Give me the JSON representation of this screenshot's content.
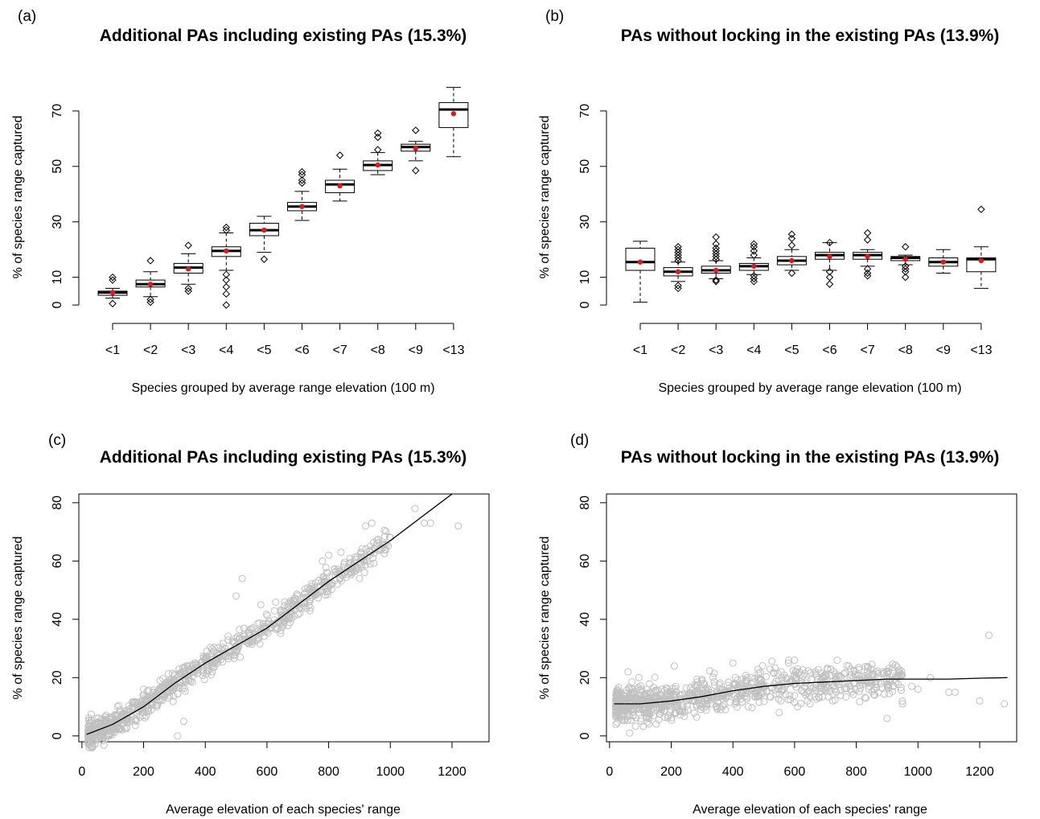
{
  "chart_data": [
    {
      "panel": "(a)",
      "type": "box",
      "title": "Additional PAs including existing PAs (15.3%)",
      "xlabel": "Species grouped by average range elevation (100 m)",
      "ylabel": "% of species range captured",
      "categories": [
        "<1",
        "<2",
        "<3",
        "<4",
        "<5",
        "<6",
        "<7",
        "<8",
        "<9",
        "<13"
      ],
      "yticks": [
        0,
        10,
        30,
        50,
        70
      ],
      "ylim": [
        -2,
        81
      ],
      "mean_color": "#e8161b",
      "boxes": [
        {
          "min": 2.5,
          "q1": 3.5,
          "median": 4.5,
          "q3": 5,
          "max": 6,
          "mean": 4.5,
          "outliers": [
            0.5,
            9,
            10
          ]
        },
        {
          "min": 3,
          "q1": 6.5,
          "median": 7.5,
          "q3": 9,
          "max": 12,
          "mean": 7.5,
          "outliers": [
            1,
            2,
            16
          ]
        },
        {
          "min": 7.5,
          "q1": 11.5,
          "median": 13.5,
          "q3": 15,
          "max": 18.5,
          "mean": 13,
          "outliers": [
            5,
            6,
            21.5
          ]
        },
        {
          "min": 12.5,
          "q1": 17.5,
          "median": 19.5,
          "q3": 21,
          "max": 26,
          "mean": 19.5,
          "outliers": [
            0,
            4,
            6.5,
            9,
            11,
            27,
            28
          ]
        },
        {
          "min": 19,
          "q1": 25,
          "median": 27,
          "q3": 29.5,
          "max": 32,
          "mean": 27,
          "outliers": [
            16.5
          ]
        },
        {
          "min": 30.5,
          "q1": 34,
          "median": 35.5,
          "q3": 37,
          "max": 41,
          "mean": 35.5,
          "outliers": [
            44,
            45,
            47,
            48
          ]
        },
        {
          "min": 37.5,
          "q1": 40.5,
          "median": 43.5,
          "q3": 45,
          "max": 49,
          "mean": 43,
          "outliers": [
            54
          ]
        },
        {
          "min": 47,
          "q1": 48.5,
          "median": 50.5,
          "q3": 52,
          "max": 55,
          "mean": 50.5,
          "outliers": [
            56,
            60.5,
            62
          ]
        },
        {
          "min": 52,
          "q1": 55.5,
          "median": 57,
          "q3": 58,
          "max": 59,
          "mean": 56.5,
          "outliers": [
            48.5,
            63
          ]
        },
        {
          "min": 53.5,
          "q1": 64,
          "median": 70.5,
          "q3": 73,
          "max": 78.5,
          "mean": 69,
          "outliers": []
        }
      ]
    },
    {
      "panel": "(b)",
      "type": "box",
      "title": "PAs without locking in the existing PAs (13.9%)",
      "xlabel": "Species grouped by average range elevation (100 m)",
      "ylabel": "% of species range captured",
      "categories": [
        "<1",
        "<2",
        "<3",
        "<4",
        "<5",
        "<6",
        "<7",
        "<8",
        "<9",
        "<13"
      ],
      "yticks": [
        0,
        10,
        30,
        50,
        70
      ],
      "ylim": [
        -2,
        81
      ],
      "mean_color": "#e8161b",
      "boxes": [
        {
          "min": 1,
          "q1": 12.5,
          "median": 15.5,
          "q3": 20.5,
          "max": 23,
          "mean": 15.5,
          "outliers": []
        },
        {
          "min": 8.5,
          "q1": 10.5,
          "median": 12,
          "q3": 13.5,
          "max": 15.5,
          "mean": 12,
          "outliers": [
            6,
            7,
            16,
            17,
            18,
            19,
            20,
            21
          ]
        },
        {
          "min": 9.5,
          "q1": 11.5,
          "median": 12.5,
          "q3": 14,
          "max": 16,
          "mean": 12.5,
          "outliers": [
            8.5,
            9,
            16.5,
            17.5,
            18.5,
            19.5,
            20.5,
            22,
            24.5
          ]
        },
        {
          "min": 11,
          "q1": 12.5,
          "median": 14,
          "q3": 15,
          "max": 17,
          "mean": 14,
          "outliers": [
            8.5,
            9.5,
            10.5,
            18,
            19.5,
            21,
            22
          ]
        },
        {
          "min": 12.5,
          "q1": 14.5,
          "median": 16,
          "q3": 17.5,
          "max": 20,
          "mean": 16,
          "outliers": [
            11.5,
            21.5,
            24,
            25.5
          ]
        },
        {
          "min": 12.5,
          "q1": 16.5,
          "median": 18,
          "q3": 19,
          "max": 22.5,
          "mean": 17.5,
          "outliers": [
            7.5,
            10,
            12,
            22.5
          ]
        },
        {
          "min": 14,
          "q1": 16.5,
          "median": 18,
          "q3": 19,
          "max": 20,
          "mean": 17.5,
          "outliers": [
            10.5,
            11.5,
            13,
            23.5,
            26
          ]
        },
        {
          "min": 14.5,
          "q1": 16,
          "median": 17,
          "q3": 17.5,
          "max": 18,
          "mean": 16.5,
          "outliers": [
            10,
            12,
            13,
            14,
            21
          ]
        },
        {
          "min": 11.5,
          "q1": 14,
          "median": 15.5,
          "q3": 17,
          "max": 20,
          "mean": 15.5,
          "outliers": []
        },
        {
          "min": 6,
          "q1": 12,
          "median": 16.5,
          "q3": 17,
          "max": 21,
          "mean": 16,
          "outliers": [
            34.5
          ]
        }
      ]
    },
    {
      "panel": "(c)",
      "type": "scatter",
      "title": "Additional PAs including existing PAs (15.3%)",
      "xlabel": "Average elevation of each species' range",
      "ylabel": "% of species range captured",
      "xticks": [
        0,
        200,
        400,
        600,
        800,
        1000,
        1200
      ],
      "yticks": [
        0,
        20,
        40,
        60,
        80
      ],
      "xlim": [
        -10,
        1320
      ],
      "ylim": [
        -2,
        83
      ],
      "point_color": "#c0c0c0",
      "line_color": "#000000",
      "trend": [
        [
          15,
          0.5
        ],
        [
          100,
          4
        ],
        [
          200,
          10
        ],
        [
          300,
          18
        ],
        [
          400,
          25
        ],
        [
          500,
          31
        ],
        [
          600,
          37
        ],
        [
          700,
          45
        ],
        [
          800,
          53
        ],
        [
          900,
          60
        ],
        [
          1000,
          67
        ],
        [
          1100,
          75
        ],
        [
          1200,
          83
        ]
      ],
      "spread": 2.2,
      "x_range_dense": [
        20,
        1000
      ],
      "extra_points": [
        [
          60,
          0
        ],
        [
          310,
          0
        ],
        [
          330,
          5
        ],
        [
          200,
          16
        ],
        [
          250,
          12
        ],
        [
          500,
          48
        ],
        [
          520,
          54
        ],
        [
          580,
          45
        ],
        [
          660,
          40
        ],
        [
          780,
          60
        ],
        [
          800,
          62
        ],
        [
          840,
          63
        ],
        [
          900,
          54
        ],
        [
          920,
          72
        ],
        [
          940,
          73
        ],
        [
          1000,
          68
        ],
        [
          1080,
          78
        ],
        [
          1110,
          73
        ],
        [
          1130,
          73
        ],
        [
          1220,
          72
        ]
      ]
    },
    {
      "panel": "(d)",
      "type": "scatter",
      "title": "PAs without locking in the existing PAs (13.9%)",
      "xlabel": "Average elevation of each species' range",
      "ylabel": "% of species range captured",
      "xticks": [
        0,
        200,
        400,
        600,
        800,
        1000,
        1200
      ],
      "yticks": [
        0,
        20,
        40,
        60,
        80
      ],
      "xlim": [
        -10,
        1320
      ],
      "ylim": [
        -2,
        83
      ],
      "point_color": "#c0c0c0",
      "line_color": "#000000",
      "trend": [
        [
          15,
          11
        ],
        [
          100,
          11
        ],
        [
          200,
          12
        ],
        [
          300,
          13.5
        ],
        [
          400,
          15.5
        ],
        [
          500,
          17
        ],
        [
          600,
          18
        ],
        [
          700,
          18.5
        ],
        [
          800,
          19
        ],
        [
          900,
          19.5
        ],
        [
          1000,
          19.5
        ],
        [
          1100,
          19.5
        ],
        [
          1200,
          19.8
        ],
        [
          1290,
          20
        ]
      ],
      "spread": 3,
      "x_range_dense": [
        20,
        950
      ],
      "extra_points": [
        [
          65,
          1
        ],
        [
          60,
          22
        ],
        [
          95,
          20
        ],
        [
          210,
          24
        ],
        [
          400,
          25
        ],
        [
          580,
          25
        ],
        [
          600,
          26
        ],
        [
          780,
          20
        ],
        [
          860,
          14
        ],
        [
          900,
          6
        ],
        [
          920,
          17
        ],
        [
          950,
          11
        ],
        [
          980,
          17
        ],
        [
          1000,
          16
        ],
        [
          1040,
          20
        ],
        [
          1100,
          15
        ],
        [
          1120,
          15
        ],
        [
          1200,
          12
        ],
        [
          1230,
          34.5
        ],
        [
          1280,
          11
        ],
        [
          550,
          8
        ],
        [
          610,
          10
        ],
        [
          650,
          11
        ]
      ]
    }
  ]
}
